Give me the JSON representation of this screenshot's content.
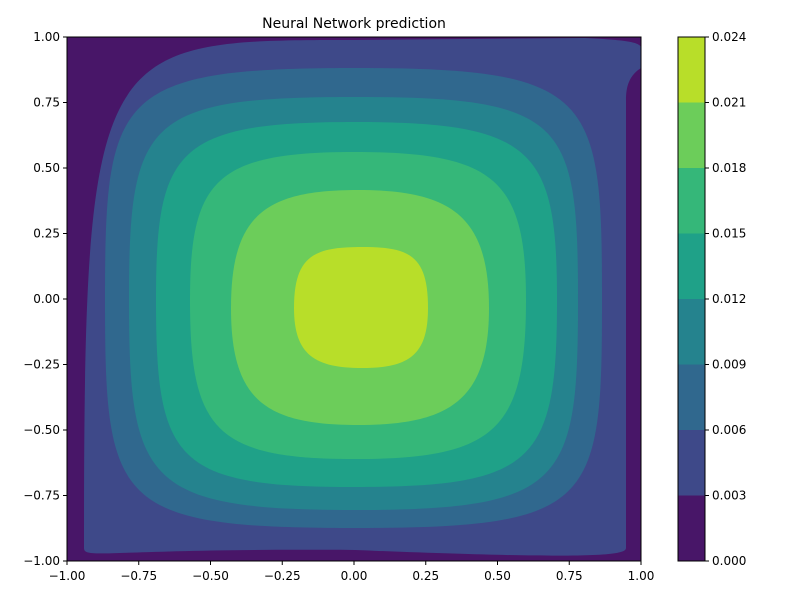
{
  "chart_data": {
    "type": "contour",
    "title": "Neural Network prediction",
    "xlabel": "",
    "ylabel": "",
    "xlim": [
      -1.0,
      1.0
    ],
    "ylim": [
      -1.0,
      1.0
    ],
    "xticks": [
      "−1.00",
      "−0.75",
      "−0.50",
      "−0.25",
      "0.00",
      "0.25",
      "0.50",
      "0.75",
      "1.00"
    ],
    "yticks": [
      "−1.00",
      "−0.75",
      "−0.50",
      "−0.25",
      "0.00",
      "0.25",
      "0.50",
      "0.75",
      "1.00"
    ],
    "colorbar": {
      "levels": [
        0.0,
        0.003,
        0.006,
        0.009,
        0.012,
        0.015,
        0.018,
        0.021,
        0.024
      ],
      "tick_labels": [
        "0.000",
        "0.003",
        "0.006",
        "0.009",
        "0.012",
        "0.015",
        "0.018",
        "0.021",
        "0.024"
      ],
      "colors": [
        "#481668",
        "#3e4989",
        "#30688e",
        "#25838e",
        "#1fa188",
        "#35b779",
        "#6ccd5a",
        "#b8de29",
        "#dde318"
      ]
    },
    "peak": {
      "x": 0.03,
      "y": -0.03,
      "value": 0.0225
    },
    "colormap": "viridis"
  }
}
